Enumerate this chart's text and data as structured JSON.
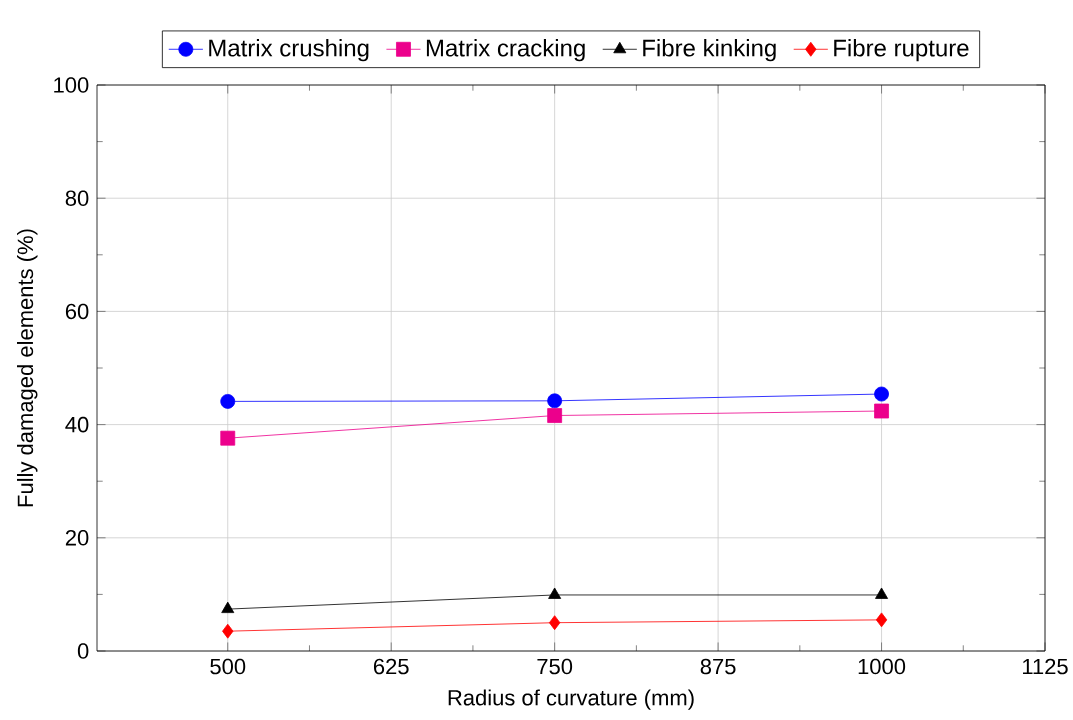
{
  "chart_data": {
    "type": "line",
    "xlabel": "Radius of curvature (mm)",
    "ylabel": "Fully damaged elements (%)",
    "x": [
      500,
      750,
      1000
    ],
    "series": [
      {
        "name": "Matrix crushing",
        "color": "#0000ff",
        "marker": "circle",
        "values": [
          44.1,
          44.2,
          45.4
        ]
      },
      {
        "name": "Matrix cracking",
        "color": "#ec008c",
        "marker": "square",
        "values": [
          37.6,
          41.6,
          42.4
        ]
      },
      {
        "name": "Fibre kinking",
        "color": "#000000",
        "marker": "triangle",
        "values": [
          7.4,
          9.9,
          9.9
        ]
      },
      {
        "name": "Fibre rupture",
        "color": "#ff0000",
        "marker": "diamond",
        "values": [
          3.5,
          5.0,
          5.5
        ]
      }
    ],
    "xlim": [
      400,
      1125
    ],
    "xticks": [
      500,
      625,
      750,
      875,
      1000,
      1125
    ],
    "ylim": [
      0,
      100
    ],
    "yticks": [
      0,
      20,
      40,
      60,
      80,
      100
    ],
    "grid": true,
    "legend": "top",
    "line_style": "solid"
  }
}
